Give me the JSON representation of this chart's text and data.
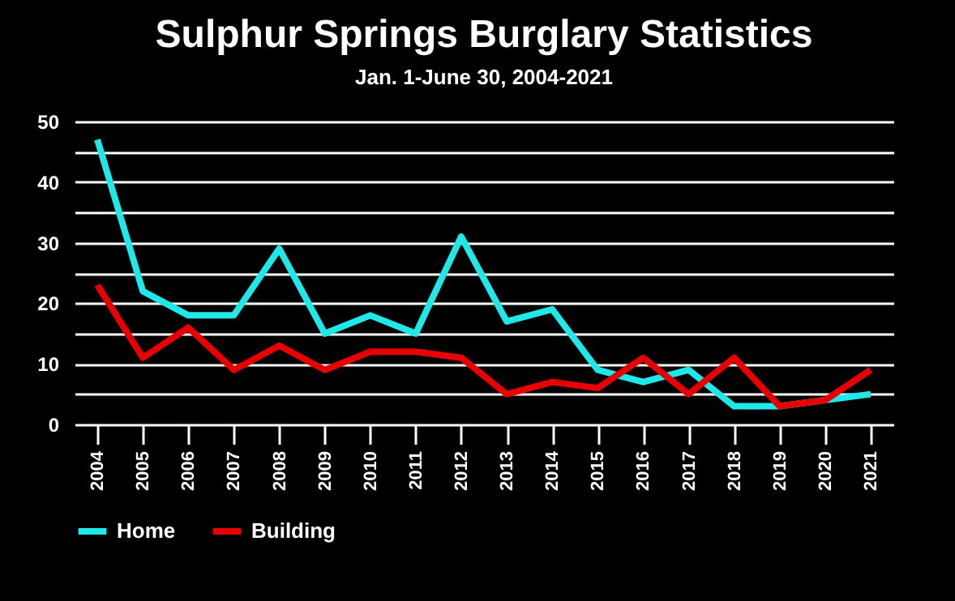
{
  "chart_data": {
    "type": "line",
    "title": "Sulphur Springs Burglary Statistics",
    "subtitle": "Jan. 1-June 30, 2004-2021",
    "categories": [
      "2004",
      "2005",
      "2006",
      "2007",
      "2008",
      "2009",
      "2010",
      "2011",
      "2012",
      "2013",
      "2014",
      "2015",
      "2016",
      "2017",
      "2018",
      "2019",
      "2020",
      "2021"
    ],
    "series": [
      {
        "name": "Home",
        "color": "#1ee8e8",
        "values": [
          47,
          22,
          18,
          18,
          29,
          15,
          18,
          15,
          31,
          17,
          19,
          9,
          7,
          9,
          3,
          3,
          4,
          5
        ]
      },
      {
        "name": "Building",
        "color": "#e80000",
        "values": [
          23,
          11,
          16,
          9,
          13,
          9,
          12,
          12,
          11,
          5,
          7,
          6,
          11,
          5,
          11,
          3,
          4,
          9
        ]
      }
    ],
    "ylim": [
      0,
      50
    ],
    "yticks": [
      0,
      {
        "value": 5,
        "label": null
      },
      10,
      {
        "value": 15,
        "label": null
      },
      20,
      {
        "value": 25,
        "label": null
      },
      30,
      {
        "value": 35,
        "label": null
      },
      40,
      {
        "value": 45,
        "label": null
      },
      50
    ],
    "grid": "y",
    "legend": "bottom",
    "line_style": "solid",
    "marker": "none"
  }
}
